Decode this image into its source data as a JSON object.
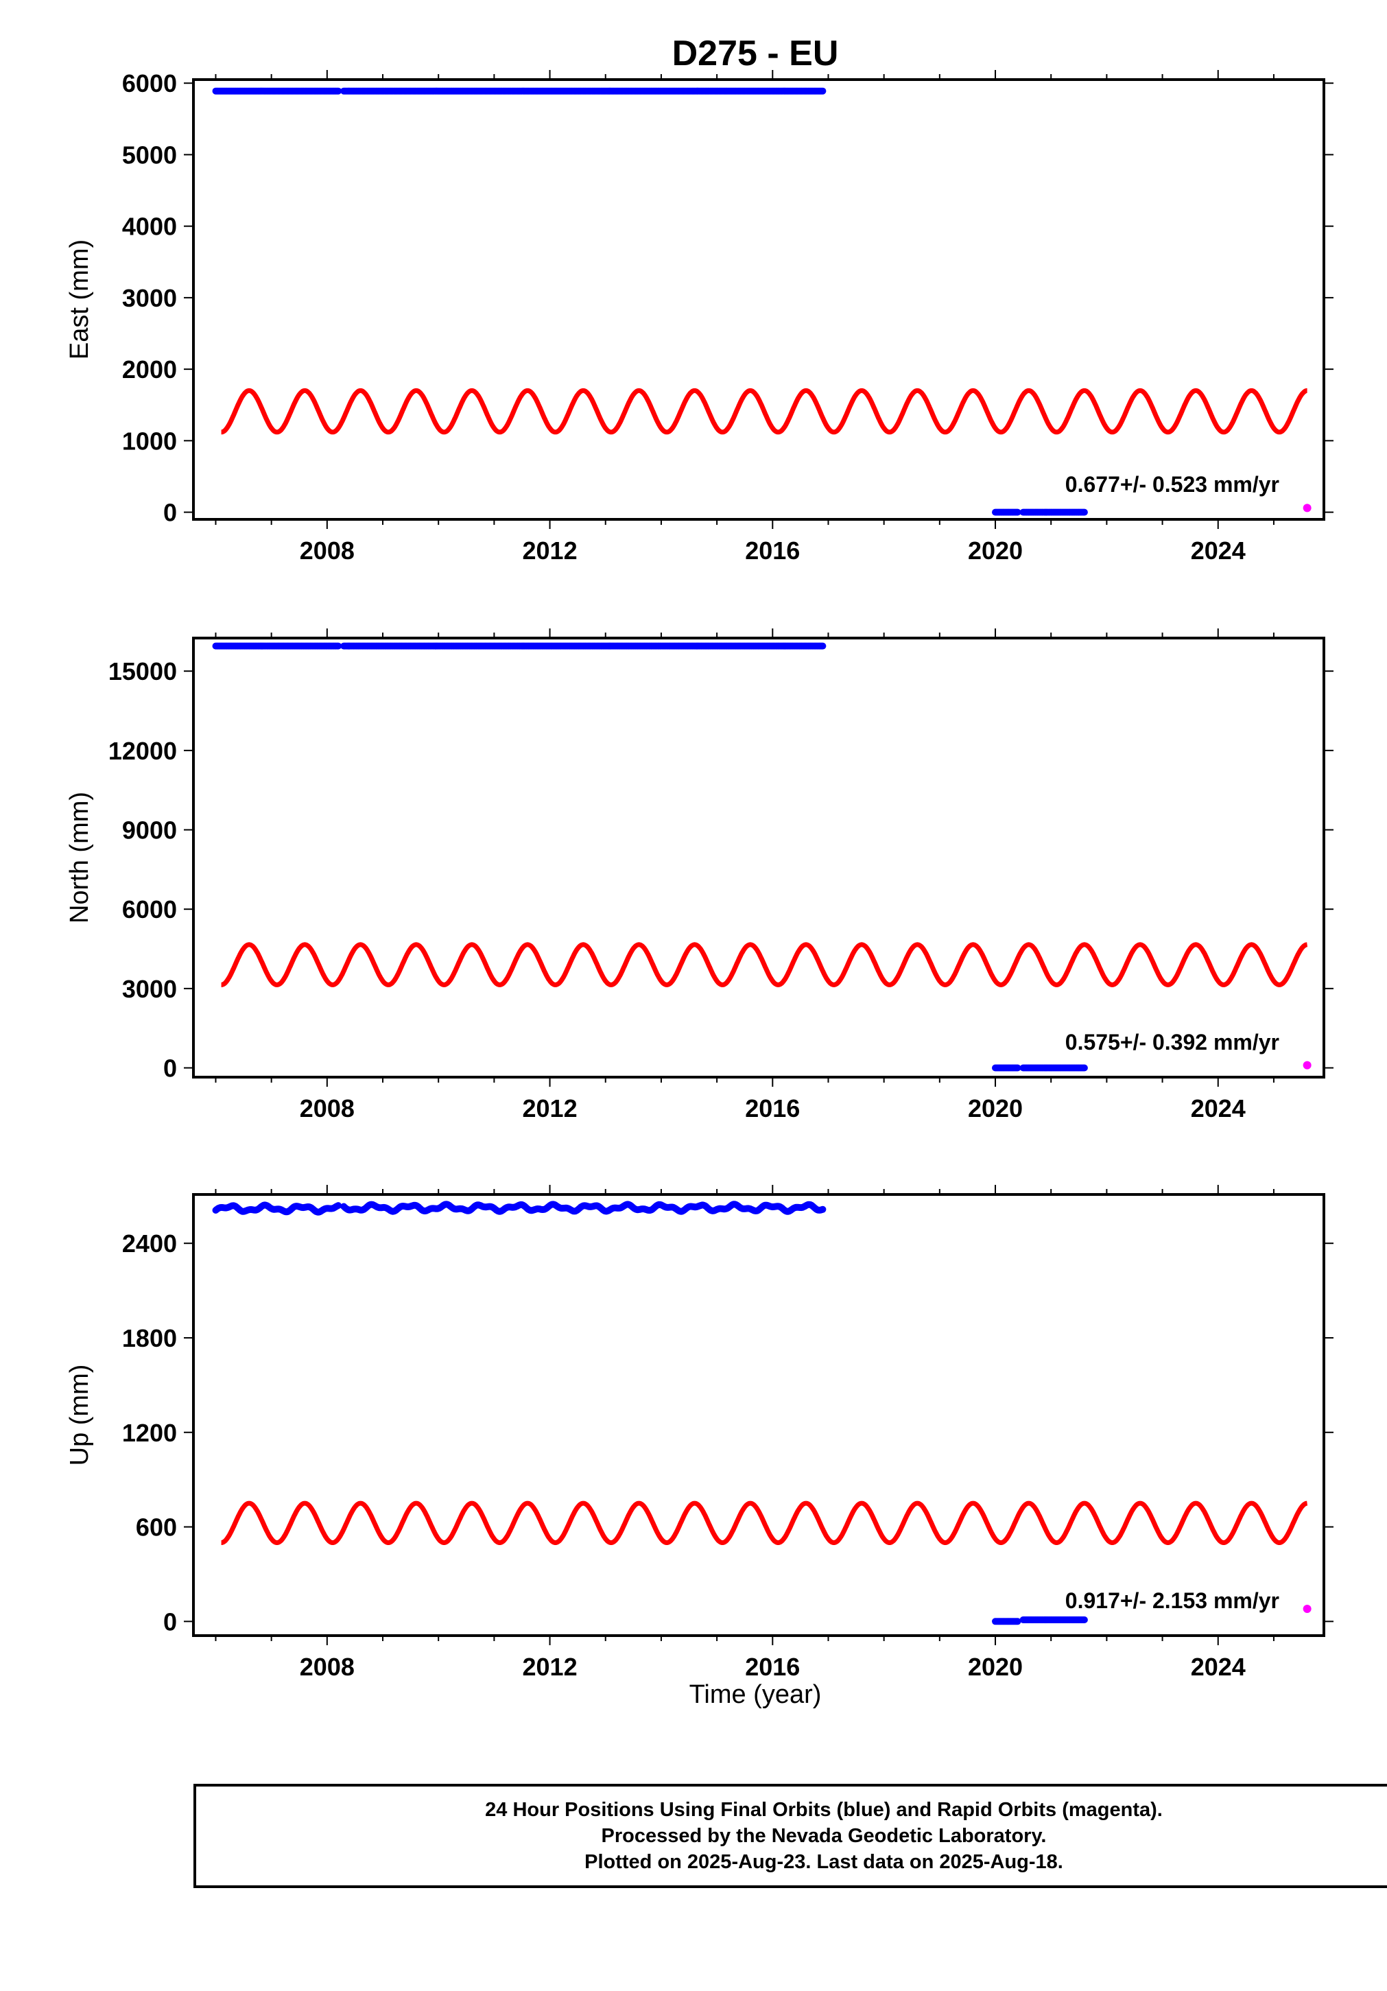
{
  "title": "D275 - EU",
  "xlabel": "Time (year)",
  "colors": {
    "final_orbits": "#0000ff",
    "rapid_orbits": "#ff00ff",
    "model": "#ff0000",
    "axes": "#000000"
  },
  "footer": {
    "line1": "24 Hour Positions Using Final Orbits (blue) and Rapid Orbits (magenta).",
    "line2": "Processed by the Nevada Geodetic Laboratory.",
    "line3": "Plotted on 2025-Aug-23. Last data on 2025-Aug-18."
  },
  "chart_data": [
    {
      "type": "scatter",
      "ylabel": "East (mm)",
      "xlim": [
        2005.6,
        2025.9
      ],
      "ylim": [
        -100,
        6050
      ],
      "x_ticks": [
        2008,
        2012,
        2016,
        2020,
        2024
      ],
      "y_ticks": [
        0,
        1000,
        2000,
        3000,
        4000,
        5000,
        6000
      ],
      "velocity_label": "0.677+/- 0.523 mm/yr",
      "series": [
        {
          "role": "final_orbits",
          "segments": [
            {
              "x": [
                2006.0,
                2008.2
              ],
              "y": 5890
            },
            {
              "x": [
                2008.3,
                2016.9
              ],
              "y": 5890
            },
            {
              "x": [
                2020.0,
                2020.4
              ],
              "y": 0
            },
            {
              "x": [
                2020.5,
                2021.6
              ],
              "y": 0
            }
          ]
        },
        {
          "role": "rapid_orbits",
          "points": [
            {
              "x": 2025.6,
              "y": 60
            }
          ]
        },
        {
          "role": "model",
          "x_range": [
            2006.1,
            2025.6
          ],
          "mean": 1410,
          "amplitude": 290,
          "period_years": 1.0,
          "peak_at": 2006.6
        }
      ]
    },
    {
      "type": "scatter",
      "ylabel": "North (mm)",
      "xlim": [
        2005.6,
        2025.9
      ],
      "ylim": [
        -350,
        16250
      ],
      "x_ticks": [
        2008,
        2012,
        2016,
        2020,
        2024
      ],
      "y_ticks": [
        0,
        3000,
        6000,
        9000,
        12000,
        15000
      ],
      "velocity_label": "0.575+/- 0.392 mm/yr",
      "series": [
        {
          "role": "final_orbits",
          "segments": [
            {
              "x": [
                2006.0,
                2008.2
              ],
              "y": 15950
            },
            {
              "x": [
                2008.3,
                2016.9
              ],
              "y": 15950
            },
            {
              "x": [
                2020.0,
                2020.4
              ],
              "y": 0
            },
            {
              "x": [
                2020.5,
                2021.6
              ],
              "y": 0
            }
          ]
        },
        {
          "role": "rapid_orbits",
          "points": [
            {
              "x": 2025.6,
              "y": 100
            }
          ]
        },
        {
          "role": "model",
          "x_range": [
            2006.1,
            2025.6
          ],
          "mean": 3900,
          "amplitude": 760,
          "period_years": 1.0,
          "peak_at": 2006.6
        }
      ]
    },
    {
      "type": "scatter",
      "ylabel": "Up (mm)",
      "xlim": [
        2005.6,
        2025.9
      ],
      "ylim": [
        -90,
        2710
      ],
      "x_ticks": [
        2008,
        2012,
        2016,
        2020,
        2024
      ],
      "y_ticks": [
        0,
        600,
        1200,
        1800,
        2400
      ],
      "velocity_label": "0.917+/- 2.153 mm/yr",
      "series": [
        {
          "role": "final_orbits",
          "segments": [
            {
              "x": [
                2006.0,
                2008.2
              ],
              "y": 2620
            },
            {
              "x": [
                2008.3,
                2016.9
              ],
              "y": 2625
            },
            {
              "x": [
                2020.0,
                2020.4
              ],
              "y": 0
            },
            {
              "x": [
                2020.5,
                2021.6
              ],
              "y": 10
            }
          ]
        },
        {
          "role": "rapid_orbits",
          "points": [
            {
              "x": 2025.6,
              "y": 80
            }
          ]
        },
        {
          "role": "model",
          "x_range": [
            2006.1,
            2025.6
          ],
          "mean": 625,
          "amplitude": 125,
          "period_years": 1.0,
          "peak_at": 2006.6
        }
      ]
    }
  ]
}
